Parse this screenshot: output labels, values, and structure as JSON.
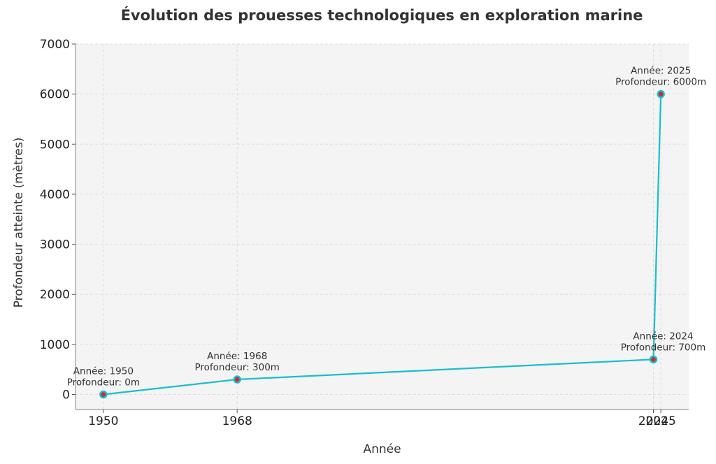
{
  "chart_data": {
    "type": "line",
    "title": "Évolution des prouesses technologiques en exploration marine",
    "xlabel": "Année",
    "ylabel": "Profondeur atteinte (mètres)",
    "x": [
      1950,
      1968,
      2024,
      2025
    ],
    "xticks": [
      "1950",
      "1968",
      "2024",
      "2025"
    ],
    "xlim": [
      1946.25,
      2028.75
    ],
    "ylim": [
      -300,
      7000
    ],
    "yticks": [
      0,
      1000,
      2000,
      3000,
      4000,
      5000,
      6000,
      7000
    ],
    "series": [
      {
        "values": [
          0,
          300,
          700,
          6000
        ]
      }
    ],
    "annotations": [
      {
        "line1": "Année: 1950",
        "line2": "Profondeur: 0m"
      },
      {
        "line1": "Année: 1968",
        "line2": "Profondeur: 300m"
      },
      {
        "line1": "Année: 2024",
        "line2": "Profondeur: 700m"
      },
      {
        "line1": "Année: 2025",
        "line2": "Profondeur: 6000m"
      }
    ],
    "grid": true,
    "colors": {
      "line": "#17becf",
      "marker_fill": "#d62728",
      "plot_bg": "#f4f4f4",
      "grid": "#dddddd"
    }
  }
}
